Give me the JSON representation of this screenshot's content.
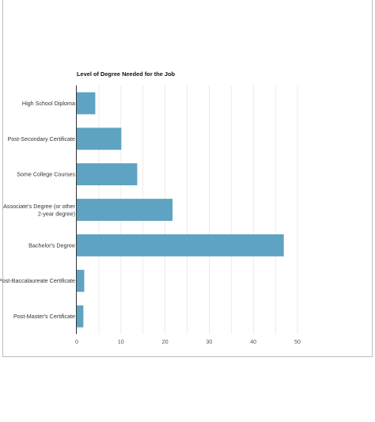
{
  "chart_data": {
    "type": "bar",
    "orientation": "horizontal",
    "title": "Level of Degree Needed for the Job",
    "categories": [
      [
        "High School Diploma"
      ],
      [
        "Post-Secondary Certificate"
      ],
      [
        "Some College Courses"
      ],
      [
        "Associate's Degree (or other",
        "2-year degree)"
      ],
      [
        "Bachelor's Degree"
      ],
      [
        "Post-Baccalaureate Certificate"
      ],
      [
        "Post-Master's Certificate"
      ]
    ],
    "values": [
      4.2,
      10.1,
      13.7,
      21.7,
      46.9,
      1.7,
      1.5
    ],
    "xlim": [
      0,
      50
    ],
    "xticks": [
      "0",
      "10",
      "20",
      "30",
      "40",
      "50"
    ],
    "grid": true,
    "bar_color": "#5ea3c1"
  }
}
